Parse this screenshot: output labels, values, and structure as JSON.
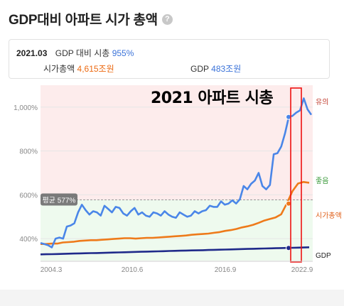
{
  "header": {
    "title": "GDP대비 아파트 시가 총액",
    "help_icon": "question-circle-icon"
  },
  "info": {
    "date": "2021.03",
    "ratio_label": "GDP 대비 시총",
    "ratio_value": "955%",
    "cap_label": "시가총액",
    "cap_value": "4,615조원",
    "gdp_label": "GDP",
    "gdp_value": "483조원"
  },
  "annotation": "2021 아파트 시총",
  "chart_data": {
    "type": "line",
    "x_tick_labels": [
      "2004.3",
      "2010.6",
      "2016.9",
      "2022.9"
    ],
    "y_tick_labels": [
      "400%",
      "600%",
      "800%",
      "1,000%"
    ],
    "ylim": [
      300,
      1100
    ],
    "average": {
      "label": "평균 577%",
      "value": 577
    },
    "zones": [
      {
        "label": "유의",
        "from": 577,
        "to": 1100,
        "color": "#fdecec"
      },
      {
        "label": "좋음",
        "from": 300,
        "to": 577,
        "color": "#eefaee"
      }
    ],
    "highlight": {
      "from": "2021.1",
      "to": "2021.8"
    },
    "series": [
      {
        "name": "",
        "axis": "left",
        "color": "#4a86e8",
        "values": [
          380,
          375,
          370,
          360,
          400,
          405,
          400,
          455,
          460,
          470,
          520,
          555,
          530,
          510,
          525,
          520,
          505,
          550,
          535,
          520,
          545,
          540,
          515,
          505,
          525,
          540,
          510,
          520,
          505,
          500,
          520,
          515,
          505,
          525,
          510,
          500,
          495,
          520,
          510,
          500,
          505,
          525,
          515,
          525,
          530,
          550,
          545,
          545,
          570,
          555,
          560,
          575,
          560,
          580,
          640,
          625,
          650,
          665,
          700,
          640,
          625,
          645,
          785,
          790,
          820,
          880,
          955,
          960,
          975,
          985,
          1040,
          990,
          965
        ]
      },
      {
        "name": "시가총액",
        "axis": "right",
        "color": "#ee7a1a",
        "label_color": "#e0601a",
        "values": [
          215,
          215,
          220,
          220,
          235,
          240,
          245,
          255,
          260,
          265,
          265,
          270,
          275,
          280,
          285,
          290,
          290,
          285,
          290,
          295,
          295,
          300,
          305,
          310,
          315,
          320,
          325,
          335,
          340,
          345,
          350,
          360,
          370,
          385,
          395,
          410,
          430,
          445,
          465,
          490,
          520,
          540,
          560,
          600,
          740,
          900,
          1000,
          1020,
          1010
        ]
      },
      {
        "name": "GDP",
        "axis": "right",
        "color": "#1f2a8a",
        "label_color": "#222",
        "values": [
          80,
          82,
          83,
          85,
          87,
          89,
          91,
          93,
          95,
          97,
          98,
          100,
          102,
          104,
          106,
          108,
          110,
          112,
          114,
          116,
          118,
          120,
          122,
          124,
          126,
          128,
          130,
          132,
          133,
          135,
          137,
          139,
          141,
          143,
          145,
          147,
          149,
          151,
          153,
          155,
          157,
          159,
          160,
          162,
          164,
          166,
          168,
          170,
          172
        ]
      }
    ]
  }
}
